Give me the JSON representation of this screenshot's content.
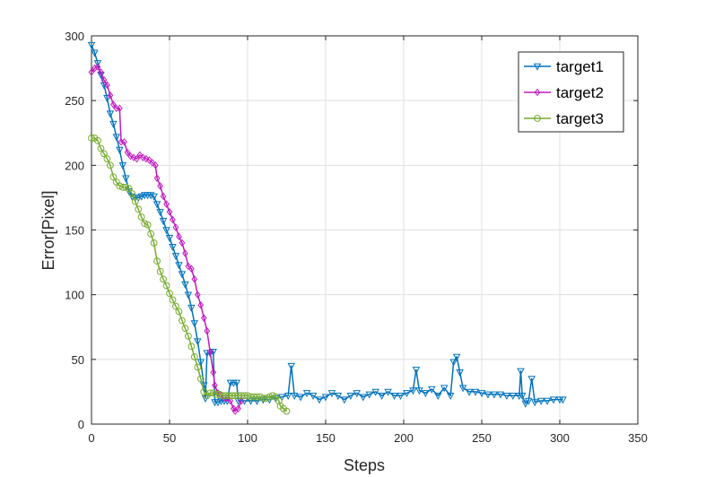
{
  "chart_data": {
    "type": "line",
    "title": "",
    "xlabel": "Steps",
    "ylabel": "Error[Pixel]",
    "xlim": [
      0,
      350
    ],
    "ylim": [
      0,
      300
    ],
    "xticks": [
      0,
      50,
      100,
      150,
      200,
      250,
      300,
      350
    ],
    "yticks": [
      0,
      50,
      100,
      150,
      200,
      250,
      300
    ],
    "grid": true,
    "legend_position": "top-right",
    "series": [
      {
        "name": "target1",
        "color": "#0072BD",
        "marker": "triangle-down",
        "points": [
          [
            0,
            293
          ],
          [
            2,
            287
          ],
          [
            4,
            279
          ],
          [
            6,
            270
          ],
          [
            8,
            262
          ],
          [
            10,
            252
          ],
          [
            12,
            240
          ],
          [
            14,
            232
          ],
          [
            16,
            222
          ],
          [
            18,
            212
          ],
          [
            20,
            200
          ],
          [
            22,
            190
          ],
          [
            24,
            180
          ],
          [
            26,
            176
          ],
          [
            28,
            175
          ],
          [
            30,
            175
          ],
          [
            32,
            176
          ],
          [
            34,
            177
          ],
          [
            36,
            177
          ],
          [
            38,
            177
          ],
          [
            40,
            176
          ],
          [
            42,
            170
          ],
          [
            44,
            164
          ],
          [
            46,
            157
          ],
          [
            48,
            150
          ],
          [
            50,
            144
          ],
          [
            52,
            137
          ],
          [
            54,
            130
          ],
          [
            56,
            123
          ],
          [
            58,
            116
          ],
          [
            60,
            108
          ],
          [
            62,
            100
          ],
          [
            64,
            90
          ],
          [
            66,
            78
          ],
          [
            68,
            64
          ],
          [
            70,
            48
          ],
          [
            72,
            30
          ],
          [
            73,
            20
          ],
          [
            74,
            55
          ],
          [
            76,
            55
          ],
          [
            78,
            56
          ],
          [
            79,
            17
          ],
          [
            81,
            17
          ],
          [
            83,
            18
          ],
          [
            85,
            18
          ],
          [
            87,
            18
          ],
          [
            89,
            32
          ],
          [
            91,
            32
          ],
          [
            93,
            32
          ],
          [
            94,
            18
          ],
          [
            98,
            18
          ],
          [
            102,
            18
          ],
          [
            106,
            18
          ],
          [
            110,
            19
          ],
          [
            114,
            19
          ],
          [
            118,
            20
          ],
          [
            122,
            21
          ],
          [
            126,
            22
          ],
          [
            128,
            45
          ],
          [
            130,
            22
          ],
          [
            134,
            21
          ],
          [
            138,
            24
          ],
          [
            142,
            22
          ],
          [
            146,
            19
          ],
          [
            150,
            21
          ],
          [
            154,
            24
          ],
          [
            158,
            22
          ],
          [
            162,
            19
          ],
          [
            166,
            22
          ],
          [
            170,
            24
          ],
          [
            174,
            21
          ],
          [
            178,
            23
          ],
          [
            182,
            25
          ],
          [
            186,
            22
          ],
          [
            190,
            25
          ],
          [
            194,
            22
          ],
          [
            198,
            22
          ],
          [
            202,
            24
          ],
          [
            206,
            26
          ],
          [
            208,
            42
          ],
          [
            210,
            26
          ],
          [
            214,
            24
          ],
          [
            218,
            27
          ],
          [
            222,
            22
          ],
          [
            226,
            28
          ],
          [
            230,
            22
          ],
          [
            232,
            48
          ],
          [
            234,
            52
          ],
          [
            236,
            40
          ],
          [
            238,
            28
          ],
          [
            242,
            25
          ],
          [
            246,
            25
          ],
          [
            250,
            24
          ],
          [
            254,
            23
          ],
          [
            258,
            23
          ],
          [
            262,
            23
          ],
          [
            266,
            22
          ],
          [
            270,
            22
          ],
          [
            274,
            22
          ],
          [
            275,
            41
          ],
          [
            276,
            22
          ],
          [
            278,
            16
          ],
          [
            280,
            18
          ],
          [
            282,
            35
          ],
          [
            284,
            17
          ],
          [
            288,
            18
          ],
          [
            292,
            18
          ],
          [
            296,
            19
          ],
          [
            300,
            19
          ],
          [
            302,
            19
          ]
        ]
      },
      {
        "name": "target2",
        "color": "#C21BC0",
        "marker": "diamond",
        "points": [
          [
            0,
            272
          ],
          [
            2,
            275
          ],
          [
            4,
            276
          ],
          [
            6,
            272
          ],
          [
            8,
            266
          ],
          [
            10,
            262
          ],
          [
            12,
            254
          ],
          [
            14,
            247
          ],
          [
            16,
            244
          ],
          [
            18,
            244
          ],
          [
            19,
            218
          ],
          [
            21,
            218
          ],
          [
            23,
            210
          ],
          [
            25,
            207
          ],
          [
            27,
            206
          ],
          [
            29,
            205
          ],
          [
            31,
            208
          ],
          [
            33,
            206
          ],
          [
            35,
            205
          ],
          [
            37,
            204
          ],
          [
            39,
            202
          ],
          [
            41,
            200
          ],
          [
            42,
            190
          ],
          [
            44,
            184
          ],
          [
            46,
            176
          ],
          [
            48,
            170
          ],
          [
            50,
            164
          ],
          [
            52,
            158
          ],
          [
            54,
            152
          ],
          [
            56,
            145
          ],
          [
            58,
            140
          ],
          [
            60,
            132
          ],
          [
            62,
            122
          ],
          [
            64,
            120
          ],
          [
            66,
            112
          ],
          [
            68,
            100
          ],
          [
            70,
            92
          ],
          [
            72,
            82
          ],
          [
            74,
            72
          ],
          [
            76,
            56
          ],
          [
            78,
            40
          ],
          [
            79,
            30
          ],
          [
            81,
            24
          ],
          [
            83,
            22
          ],
          [
            85,
            20
          ],
          [
            87,
            20
          ],
          [
            89,
            18
          ],
          [
            91,
            12
          ],
          [
            92,
            10
          ],
          [
            94,
            12
          ],
          [
            96,
            18
          ]
        ]
      },
      {
        "name": "target3",
        "color": "#77AC30",
        "marker": "circle",
        "points": [
          [
            0,
            221
          ],
          [
            2,
            221
          ],
          [
            4,
            219
          ],
          [
            6,
            213
          ],
          [
            8,
            209
          ],
          [
            10,
            205
          ],
          [
            12,
            200
          ],
          [
            14,
            191
          ],
          [
            16,
            187
          ],
          [
            18,
            184
          ],
          [
            20,
            183
          ],
          [
            22,
            183
          ],
          [
            24,
            182
          ],
          [
            26,
            178
          ],
          [
            28,
            172
          ],
          [
            30,
            166
          ],
          [
            32,
            160
          ],
          [
            34,
            155
          ],
          [
            36,
            154
          ],
          [
            38,
            147
          ],
          [
            40,
            140
          ],
          [
            42,
            126
          ],
          [
            44,
            118
          ],
          [
            46,
            112
          ],
          [
            48,
            107
          ],
          [
            50,
            101
          ],
          [
            52,
            96
          ],
          [
            54,
            91
          ],
          [
            56,
            87
          ],
          [
            58,
            80
          ],
          [
            60,
            74
          ],
          [
            62,
            68
          ],
          [
            64,
            60
          ],
          [
            66,
            52
          ],
          [
            68,
            44
          ],
          [
            70,
            35
          ],
          [
            72,
            25
          ],
          [
            74,
            22
          ],
          [
            76,
            24
          ],
          [
            78,
            24
          ],
          [
            80,
            23
          ],
          [
            82,
            23
          ],
          [
            84,
            22
          ],
          [
            86,
            22
          ],
          [
            88,
            22
          ],
          [
            90,
            22
          ],
          [
            92,
            22
          ],
          [
            94,
            22
          ],
          [
            96,
            22
          ],
          [
            98,
            22
          ],
          [
            100,
            22
          ],
          [
            102,
            21
          ],
          [
            104,
            21
          ],
          [
            106,
            21
          ],
          [
            108,
            21
          ],
          [
            110,
            20
          ],
          [
            112,
            20
          ],
          [
            114,
            21
          ],
          [
            116,
            22
          ],
          [
            118,
            21
          ],
          [
            120,
            18
          ],
          [
            121,
            14
          ],
          [
            123,
            12
          ],
          [
            125,
            10
          ]
        ]
      }
    ]
  }
}
